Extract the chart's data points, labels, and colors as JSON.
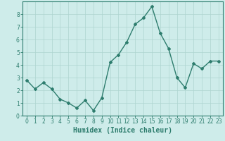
{
  "x": [
    0,
    1,
    2,
    3,
    4,
    5,
    6,
    7,
    8,
    9,
    10,
    11,
    12,
    13,
    14,
    15,
    16,
    17,
    18,
    19,
    20,
    21,
    22,
    23
  ],
  "y": [
    2.8,
    2.1,
    2.6,
    2.1,
    1.3,
    1.0,
    0.6,
    1.2,
    0.4,
    1.4,
    4.2,
    4.8,
    5.8,
    7.2,
    7.7,
    8.6,
    6.5,
    5.3,
    3.0,
    2.2,
    4.1,
    3.7,
    4.3,
    4.3
  ],
  "xlabel": "Humidex (Indice chaleur)",
  "xlim": [
    -0.5,
    23.5
  ],
  "ylim": [
    0,
    9
  ],
  "yticks": [
    0,
    1,
    2,
    3,
    4,
    5,
    6,
    7,
    8
  ],
  "xticks": [
    0,
    1,
    2,
    3,
    4,
    5,
    6,
    7,
    8,
    9,
    10,
    11,
    12,
    13,
    14,
    15,
    16,
    17,
    18,
    19,
    20,
    21,
    22,
    23
  ],
  "line_color": "#2e7d6e",
  "marker": "D",
  "marker_size": 2.0,
  "line_width": 1.0,
  "bg_color": "#ceecea",
  "grid_color": "#aed4d0",
  "tick_label_fontsize": 5.5,
  "xlabel_fontsize": 7.0
}
